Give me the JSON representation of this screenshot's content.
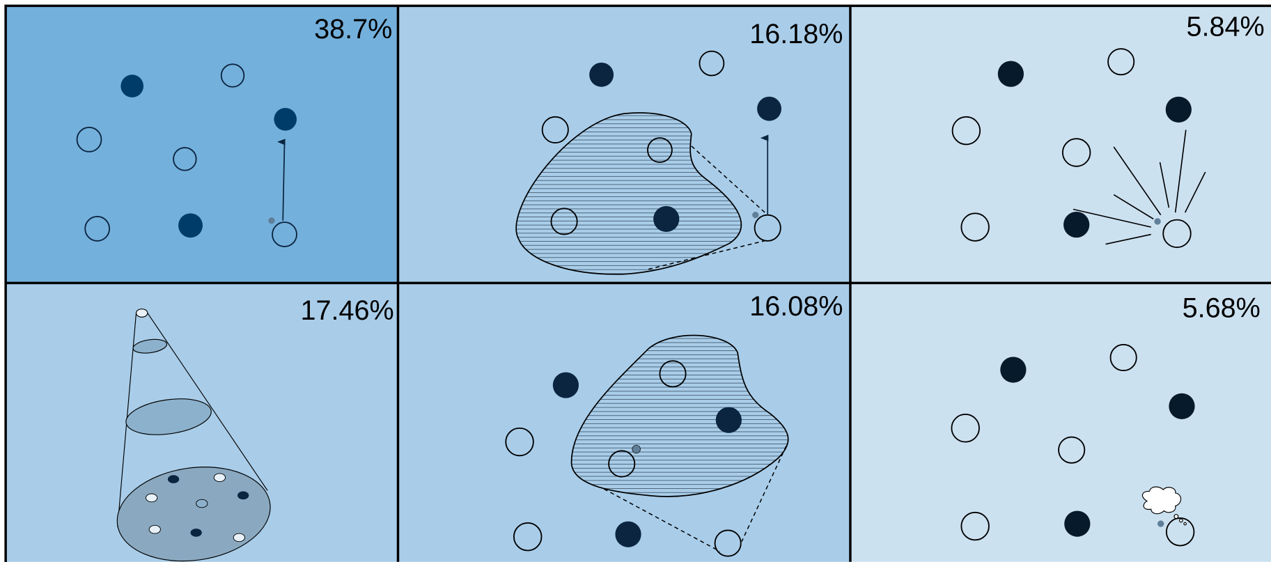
{
  "panels": [
    {
      "label": "38.7%"
    },
    {
      "label": "16.18%"
    },
    {
      "label": "5.84%"
    },
    {
      "label": "17.46%"
    },
    {
      "label": "16.08%"
    },
    {
      "label": "5.68%"
    }
  ]
}
